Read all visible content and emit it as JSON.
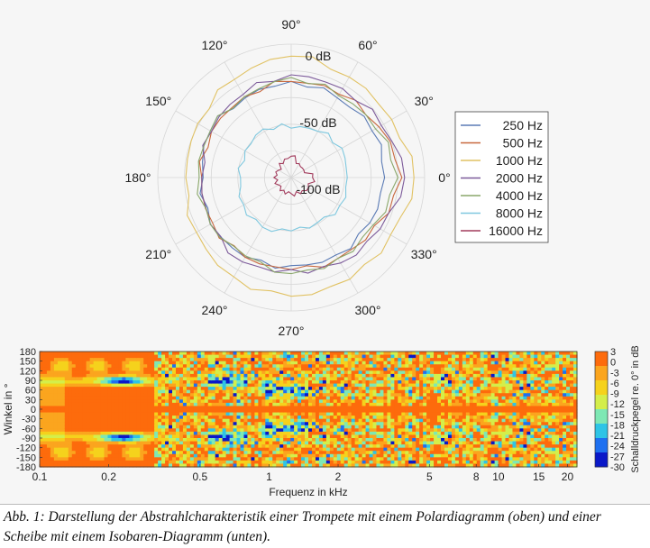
{
  "chart_data": [
    {
      "type": "polar",
      "title": "",
      "angle_labels": [
        "0°",
        "30°",
        "60°",
        "90°",
        "120°",
        "150°",
        "180°",
        "210°",
        "240°",
        "270°",
        "300°",
        "330°"
      ],
      "radial_labels": [
        "0 dB",
        "-50 dB",
        "-100 dB"
      ],
      "radial_range_db": [
        -100,
        0
      ],
      "legend_position": "right",
      "angles_deg": [
        0,
        30,
        60,
        90,
        120,
        150,
        180,
        210,
        240,
        270,
        300,
        330
      ],
      "series": [
        {
          "name": "250 Hz",
          "color": "#5b7bb5",
          "values": [
            -30,
            -30,
            -31,
            -28,
            -31,
            -30,
            -34,
            -30,
            -31,
            -34,
            -33,
            -32
          ]
        },
        {
          "name": "500 Hz",
          "color": "#c8683e",
          "values": [
            -17,
            -24,
            -28,
            -28,
            -30,
            -31,
            -33,
            -32,
            -31,
            -31,
            -30,
            -28
          ]
        },
        {
          "name": "1000 Hz",
          "color": "#e1c264",
          "values": [
            -8,
            -13,
            -13,
            -9,
            -15,
            -19,
            -21,
            -18,
            -14,
            -11,
            -12,
            -14
          ]
        },
        {
          "name": "2000 Hz",
          "color": "#7c5a9a",
          "values": [
            -15,
            -22,
            -23,
            -23,
            -28,
            -31,
            -33,
            -30,
            -27,
            -31,
            -26,
            -23
          ]
        },
        {
          "name": "4000 Hz",
          "color": "#8aa76a",
          "values": [
            -20,
            -27,
            -29,
            -25,
            -30,
            -30,
            -31,
            -30,
            -32,
            -28,
            -30,
            -29
          ]
        },
        {
          "name": "8000 Hz",
          "color": "#7fc8df",
          "values": [
            -58,
            -56,
            -60,
            -63,
            -58,
            -60,
            -62,
            -59,
            -57,
            -60,
            -61,
            -58
          ]
        },
        {
          "name": "16000 Hz",
          "color": "#a23b5c",
          "values": [
            -84,
            -89,
            -88,
            -84,
            -88,
            -89,
            -87,
            -89,
            -89,
            -88,
            -86,
            -85
          ]
        }
      ]
    },
    {
      "type": "heatmap",
      "xlabel": "Frequenz in kHz",
      "ylabel": "Winkel in °",
      "x_scale": "log",
      "xlim": [
        0.1,
        22
      ],
      "ylim": [
        -180,
        180
      ],
      "x_ticks": [
        "0.1",
        "0.2",
        "0.5",
        "1",
        "2",
        "5",
        "8",
        "10",
        "15",
        "20"
      ],
      "x_tick_values": [
        0.1,
        0.2,
        0.5,
        1,
        2,
        5,
        8,
        10,
        15,
        20
      ],
      "y_ticks": [
        "180",
        "150",
        "120",
        "90",
        "60",
        "30",
        "0",
        "-30",
        "-60",
        "-90",
        "-120",
        "-150",
        "-180"
      ],
      "y_tick_values": [
        180,
        150,
        120,
        90,
        60,
        30,
        0,
        -30,
        -60,
        -90,
        -120,
        -150,
        -180
      ],
      "colorbar_label": "Schalldruckpegel re. 0° in dB",
      "colorbar_ticks": [
        "3",
        "0",
        "-3",
        "-6",
        "-9",
        "-12",
        "-15",
        "-18",
        "-21",
        "-24",
        "-27",
        "-30"
      ],
      "colorbar_range": [
        -30,
        3
      ],
      "colormap": [
        "#0a18c8",
        "#1e70f0",
        "#2ec4e6",
        "#7ee8b4",
        "#d4ee4a",
        "#f5d21c",
        "#fba51e",
        "#fd6b0c"
      ]
    }
  ],
  "caption": {
    "text": "Abb. 1: Darstellung der Abstrahlcharakteristik einer Trompete mit einem Polardiagramm (oben) und einer Scheibe mit einem Isobaren-Diagramm (unten)."
  }
}
